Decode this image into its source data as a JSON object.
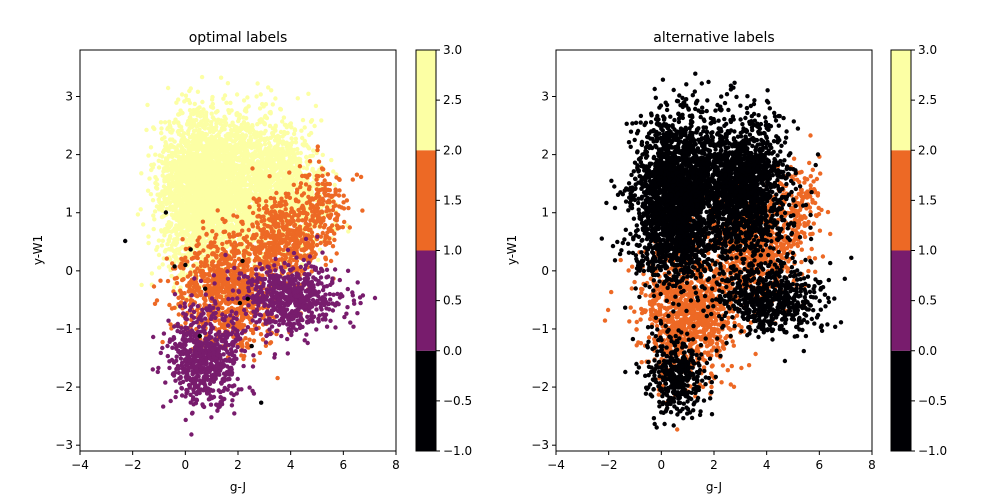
{
  "chart_data": [
    {
      "type": "scatter",
      "title": "optimal labels",
      "xlabel": "g-J",
      "ylabel": "y-W1",
      "xlim": [
        -4,
        8
      ],
      "ylim": [
        -3.1,
        3.8
      ],
      "xticks": [
        "−4",
        "−2",
        "0",
        "2",
        "4",
        "6",
        "8"
      ],
      "yticks": [
        "−3",
        "−2",
        "−1",
        "0",
        "1",
        "2",
        "3"
      ],
      "grid": false,
      "colorbar": {
        "range": [
          -1.0,
          3.0
        ],
        "ticks": [
          "−1.0",
          "−0.5",
          "0.0",
          "0.5",
          "1.0",
          "1.5",
          "2.0",
          "2.5",
          "3.0"
        ],
        "bands": [
          {
            "from": -1,
            "to": 0,
            "color": "#000004"
          },
          {
            "from": 0,
            "to": 1,
            "color": "#781c6d"
          },
          {
            "from": 1,
            "to": 2,
            "color": "#ed6925"
          },
          {
            "from": 2,
            "to": 3,
            "color": "#fcffa4"
          }
        ]
      },
      "series": [
        {
          "label": 2,
          "color": "#fcffa4",
          "clusters": [
            {
              "center": [
                0.6,
                1.35
              ],
              "spread": [
                0.8,
                0.65
              ],
              "count": 2600
            },
            {
              "center": [
                2.8,
                1.5
              ],
              "spread": [
                0.95,
                0.6
              ],
              "count": 1600
            },
            {
              "center": [
                4.2,
                1.25
              ],
              "spread": [
                0.6,
                0.45
              ],
              "count": 400
            }
          ]
        },
        {
          "label": 1,
          "color": "#ed6925",
          "clusters": [
            {
              "center": [
                1.6,
                -0.35
              ],
              "spread": [
                0.9,
                0.5
              ],
              "count": 900
            },
            {
              "center": [
                3.8,
                0.6
              ],
              "spread": [
                0.7,
                0.4
              ],
              "count": 500
            },
            {
              "center": [
                5.3,
                1.1
              ],
              "spread": [
                0.5,
                0.4
              ],
              "count": 160
            }
          ]
        },
        {
          "label": 0,
          "color": "#781c6d",
          "clusters": [
            {
              "center": [
                0.8,
                -1.5
              ],
              "spread": [
                0.7,
                0.4
              ],
              "count": 700
            },
            {
              "center": [
                4.0,
                -0.45
              ],
              "spread": [
                1.0,
                0.3
              ],
              "count": 650
            }
          ]
        },
        {
          "label": -1,
          "color": "#000004",
          "clusters": [
            {
              "center": [
                1.5,
                0.0
              ],
              "spread": [
                1.2,
                1.0
              ],
              "count": 12
            }
          ]
        }
      ]
    },
    {
      "type": "scatter",
      "title": "alternative labels",
      "xlabel": "g-J",
      "ylabel": "y-W1",
      "xlim": [
        -4,
        8
      ],
      "ylim": [
        -3.1,
        3.8
      ],
      "xticks": [
        "−4",
        "−2",
        "0",
        "2",
        "4",
        "6",
        "8"
      ],
      "yticks": [
        "−3",
        "−2",
        "−1",
        "0",
        "1",
        "2",
        "3"
      ],
      "grid": false,
      "colorbar": {
        "range": [
          -1.0,
          3.0
        ],
        "ticks": [
          "−1.0",
          "−0.5",
          "0.0",
          "0.5",
          "1.0",
          "1.5",
          "2.0",
          "2.5",
          "3.0"
        ],
        "bands": [
          {
            "from": -1,
            "to": 0,
            "color": "#000004"
          },
          {
            "from": 0,
            "to": 1,
            "color": "#781c6d"
          },
          {
            "from": 1,
            "to": 2,
            "color": "#ed6925"
          },
          {
            "from": 2,
            "to": 3,
            "color": "#fcffa4"
          }
        ]
      },
      "series": [
        {
          "label": 1,
          "color": "#ed6925",
          "clusters": [
            {
              "center": [
                1.0,
                -0.7
              ],
              "spread": [
                0.9,
                0.55
              ],
              "count": 1100
            },
            {
              "center": [
                3.6,
                0.4
              ],
              "spread": [
                0.8,
                0.45
              ],
              "count": 600
            },
            {
              "center": [
                5.3,
                1.1
              ],
              "spread": [
                0.5,
                0.4
              ],
              "count": 150
            }
          ]
        },
        {
          "label": -1,
          "color": "#000004",
          "clusters": [
            {
              "center": [
                0.6,
                1.2
              ],
              "spread": [
                0.8,
                0.7
              ],
              "count": 2600
            },
            {
              "center": [
                3.1,
                1.45
              ],
              "spread": [
                0.9,
                0.6
              ],
              "count": 1700
            },
            {
              "center": [
                4.1,
                -0.5
              ],
              "spread": [
                1.0,
                0.3
              ],
              "count": 650
            },
            {
              "center": [
                0.6,
                -1.8
              ],
              "spread": [
                0.6,
                0.35
              ],
              "count": 400
            }
          ]
        }
      ]
    }
  ]
}
